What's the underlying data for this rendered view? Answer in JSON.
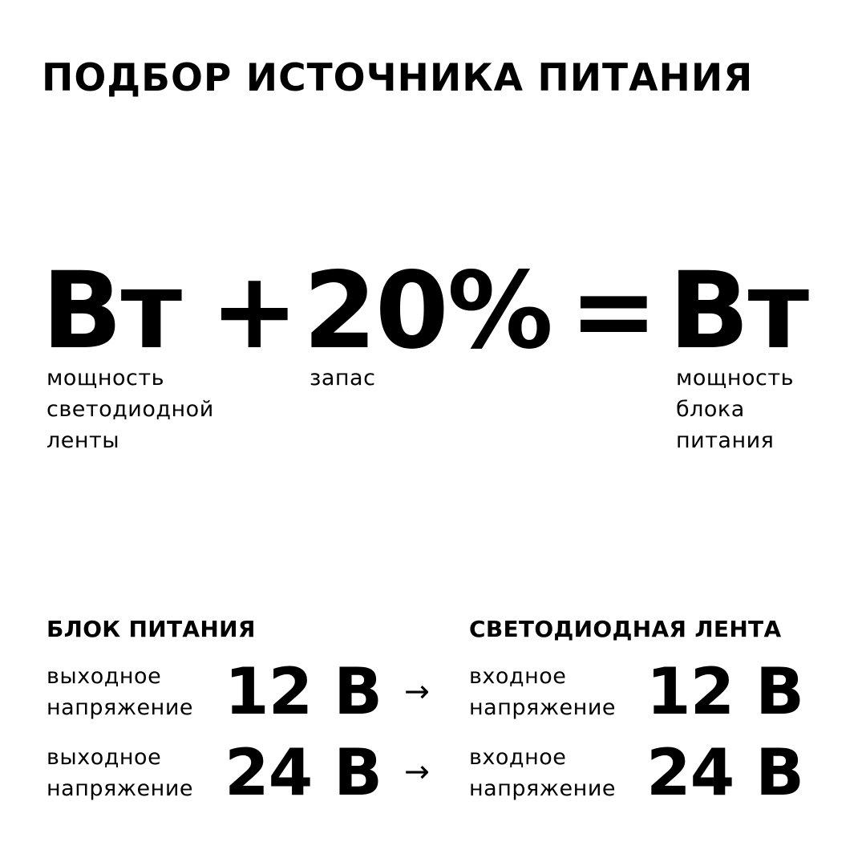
{
  "title": "ПОДБОР ИСТОЧНИКА ПИТАНИЯ",
  "formula": {
    "term1": "Вт",
    "plus": "+",
    "term2": "20%",
    "equals": "=",
    "result": "Вт",
    "term1_label": [
      "мощность",
      "светодиодной",
      "ленты"
    ],
    "term2_label": [
      "запас"
    ],
    "result_label": [
      "мощность",
      "блока",
      "питания"
    ]
  },
  "left_column": {
    "heading": "БЛОК ПИТАНИЯ",
    "rows": [
      {
        "label": [
          "выходное",
          "напряжение"
        ],
        "value": "12 В"
      },
      {
        "label": [
          "выходное",
          "напряжение"
        ],
        "value": "24 В"
      }
    ]
  },
  "arrow": "→",
  "right_column": {
    "heading": "СВЕТОДИОДНАЯ ЛЕНТА",
    "rows": [
      {
        "label": [
          "входное",
          "напряжение"
        ],
        "value": "12 В"
      },
      {
        "label": [
          "входное",
          "напряжение"
        ],
        "value": "24 В"
      }
    ]
  }
}
